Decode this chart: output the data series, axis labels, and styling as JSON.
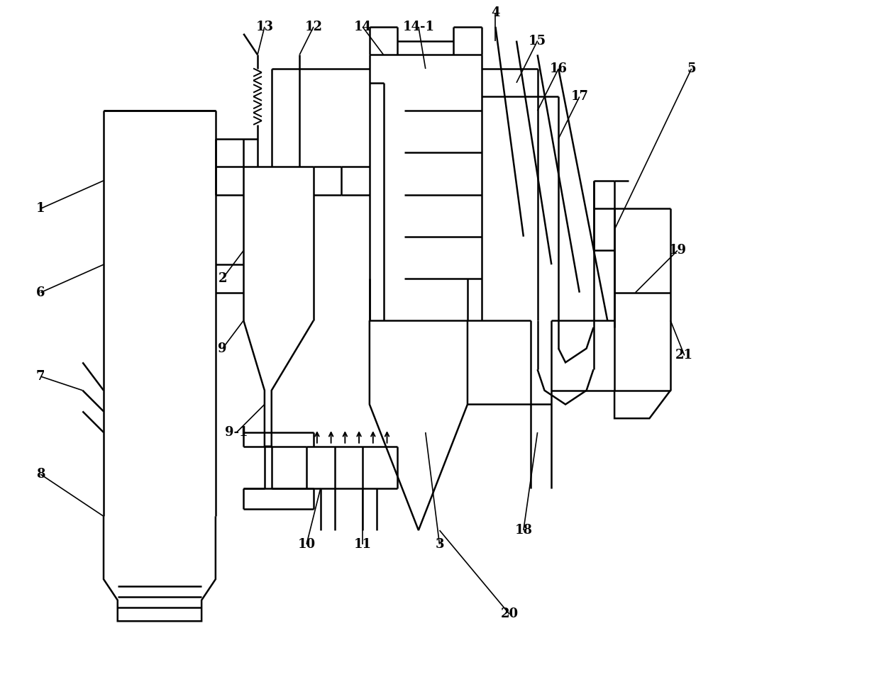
{
  "bg_color": "#ffffff",
  "lc": "#000000",
  "lw": 1.8,
  "fw": 12.39,
  "fh": 9.72,
  "dpi": 100,
  "xlim": [
    0,
    124
  ],
  "ylim": [
    0,
    97
  ]
}
